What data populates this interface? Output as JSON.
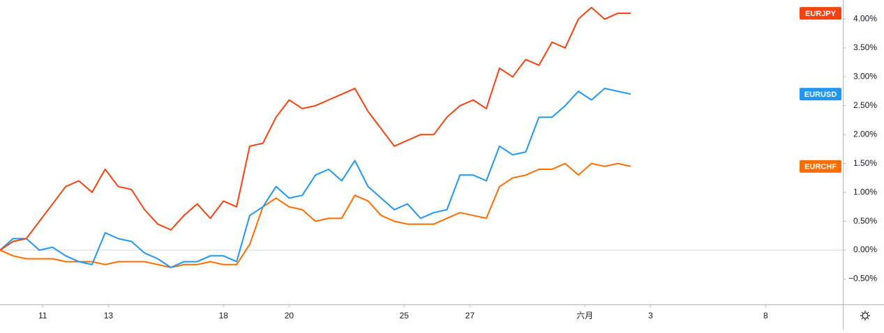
{
  "chart_data": {
    "type": "line",
    "x": [
      -1.3,
      -0.9,
      -0.5,
      -0.1,
      0.3,
      0.7,
      1.1,
      1.5,
      1.9,
      2.3,
      2.7,
      3.1,
      3.5,
      3.9,
      4.3,
      4.7,
      5.1,
      5.5,
      5.9,
      6.3,
      6.7,
      7.1,
      7.5,
      7.9,
      8.3,
      8.7,
      9.1,
      9.5,
      9.9,
      10.3,
      10.7,
      11.1,
      11.5,
      11.9,
      12.3,
      12.7,
      13.1,
      13.5,
      13.9,
      14.3,
      14.7,
      15.1,
      15.5,
      15.9,
      16.3,
      16.7,
      17.1,
      17.5,
      17.9
    ],
    "series": [
      {
        "name": "EURJPY",
        "color": "#f5420f",
        "values": [
          0.0,
          0.15,
          0.2,
          0.5,
          0.8,
          1.1,
          1.2,
          1.0,
          1.4,
          1.1,
          1.05,
          0.7,
          0.45,
          0.35,
          0.6,
          0.8,
          0.55,
          0.85,
          0.75,
          1.8,
          1.85,
          2.3,
          2.6,
          2.45,
          2.5,
          2.6,
          2.7,
          2.8,
          2.4,
          2.1,
          1.8,
          1.9,
          2.0,
          2.0,
          2.3,
          2.5,
          2.6,
          2.45,
          3.15,
          3.0,
          3.3,
          3.2,
          3.6,
          3.5,
          4.0,
          4.2,
          4.0,
          4.1,
          4.1
        ]
      },
      {
        "name": "EURUSD",
        "color": "#2196f3",
        "values": [
          0.0,
          0.2,
          0.2,
          0.0,
          0.05,
          -0.1,
          -0.2,
          -0.25,
          0.3,
          0.2,
          0.15,
          -0.05,
          -0.15,
          -0.3,
          -0.2,
          -0.2,
          -0.1,
          -0.1,
          -0.2,
          0.6,
          0.75,
          1.1,
          0.9,
          0.95,
          1.3,
          1.4,
          1.2,
          1.55,
          1.1,
          0.9,
          0.7,
          0.8,
          0.55,
          0.65,
          0.7,
          1.3,
          1.3,
          1.2,
          1.8,
          1.65,
          1.7,
          2.3,
          2.3,
          2.5,
          2.75,
          2.6,
          2.8,
          2.75,
          2.7
        ]
      },
      {
        "name": "EURCHF",
        "color": "#ff6d00",
        "values": [
          0.0,
          -0.1,
          -0.15,
          -0.15,
          -0.15,
          -0.2,
          -0.2,
          -0.2,
          -0.25,
          -0.2,
          -0.2,
          -0.2,
          -0.25,
          -0.3,
          -0.25,
          -0.25,
          -0.2,
          -0.25,
          -0.25,
          0.1,
          0.75,
          0.9,
          0.75,
          0.7,
          0.5,
          0.55,
          0.55,
          0.95,
          0.85,
          0.6,
          0.5,
          0.45,
          0.45,
          0.45,
          0.55,
          0.65,
          0.6,
          0.55,
          1.1,
          1.25,
          1.3,
          1.4,
          1.4,
          1.5,
          1.3,
          1.5,
          1.45,
          1.5,
          1.45
        ]
      }
    ],
    "xlim": [
      -1.3,
      24.35
    ],
    "xticks": [
      {
        "value": 0,
        "label": "11"
      },
      {
        "value": 2,
        "label": "13"
      },
      {
        "value": 5.5,
        "label": "18"
      },
      {
        "value": 7.5,
        "label": "20"
      },
      {
        "value": 11,
        "label": "25"
      },
      {
        "value": 13,
        "label": "27"
      },
      {
        "value": 16.5,
        "label": "六月"
      },
      {
        "value": 18.5,
        "label": "3"
      },
      {
        "value": 22,
        "label": "8"
      }
    ],
    "ylim": [
      -0.94,
      4.33
    ],
    "yticks": [
      {
        "value": -0.5,
        "label": "−0.50%"
      },
      {
        "value": 0,
        "label": "0.00%"
      },
      {
        "value": 0.5,
        "label": "0.50%"
      },
      {
        "value": 1,
        "label": "1.00%"
      },
      {
        "value": 1.5,
        "label": "1.50%"
      },
      {
        "value": 2,
        "label": "2.00%"
      },
      {
        "value": 2.5,
        "label": "2.50%"
      },
      {
        "value": 3,
        "label": "3.00%"
      },
      {
        "value": 3.5,
        "label": "3.50%"
      },
      {
        "value": 4,
        "label": "4.00%"
      }
    ]
  }
}
